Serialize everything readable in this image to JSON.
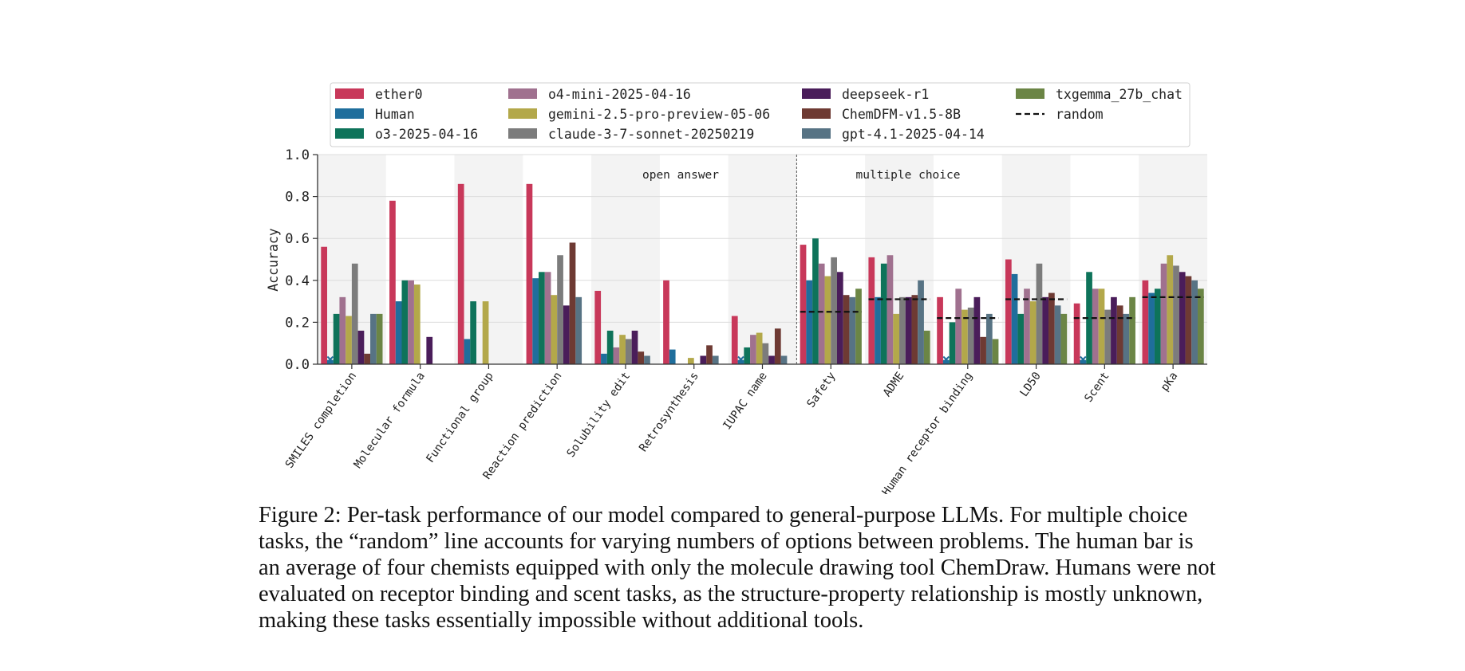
{
  "chart_data": {
    "type": "bar",
    "ylabel": "Accuracy",
    "xlabel": "",
    "ylim": [
      0,
      1.0
    ],
    "yticks": [
      "0.0",
      "0.2",
      "0.4",
      "0.6",
      "0.8",
      "1.0"
    ],
    "grid": true,
    "legend_position": "top-center",
    "section_labels": [
      "open answer",
      "multiple choice"
    ],
    "random_label": "random",
    "categories": [
      "SMILES completion",
      "Molecular formula",
      "Functional group",
      "Reaction prediction",
      "Solubility edit",
      "Retrosynthesis",
      "IUPAC name",
      "Safety",
      "ADME",
      "Human receptor binding",
      "LD50",
      "Scent",
      "pKa"
    ],
    "open_answer_count": 7,
    "series": [
      {
        "name": "ether0",
        "color": "#c8385a",
        "values": [
          0.56,
          0.78,
          0.86,
          0.86,
          0.35,
          0.4,
          0.23,
          0.57,
          0.51,
          0.32,
          0.5,
          0.29,
          0.4
        ]
      },
      {
        "name": "Human",
        "color": "#1f6e9c",
        "values": [
          0.02,
          0.3,
          0.12,
          0.41,
          0.05,
          0.07,
          0.02,
          0.4,
          0.32,
          0.02,
          0.43,
          0.02,
          0.34
        ]
      },
      {
        "name": "o3-2025-04-16",
        "color": "#0e735a",
        "values": [
          0.24,
          0.4,
          0.3,
          0.44,
          0.16,
          0.0,
          0.08,
          0.6,
          0.48,
          0.2,
          0.24,
          0.44,
          0.36
        ]
      },
      {
        "name": "o4-mini-2025-04-16",
        "color": "#a0718f",
        "values": [
          0.32,
          0.4,
          0.0,
          0.44,
          0.08,
          0.0,
          0.14,
          0.48,
          0.52,
          0.36,
          0.36,
          0.36,
          0.48
        ]
      },
      {
        "name": "gemini-2.5-pro-preview-05-06",
        "color": "#b3a84a",
        "values": [
          0.23,
          0.38,
          0.3,
          0.33,
          0.14,
          0.03,
          0.15,
          0.42,
          0.24,
          0.26,
          0.3,
          0.36,
          0.52
        ]
      },
      {
        "name": "claude-3-7-sonnet-20250219",
        "color": "#7c7c7c",
        "values": [
          0.48,
          0.0,
          0.0,
          0.52,
          0.12,
          0.0,
          0.1,
          0.51,
          0.32,
          0.27,
          0.48,
          0.26,
          0.47
        ]
      },
      {
        "name": "deepseek-r1",
        "color": "#4a1d5a",
        "values": [
          0.16,
          0.13,
          0.0,
          0.28,
          0.16,
          0.04,
          0.04,
          0.44,
          0.32,
          0.32,
          0.32,
          0.32,
          0.44
        ]
      },
      {
        "name": "ChemDFM-v1.5-8B",
        "color": "#6e3a33",
        "values": [
          0.05,
          0.0,
          0.0,
          0.58,
          0.06,
          0.09,
          0.17,
          0.33,
          0.33,
          0.13,
          0.34,
          0.28,
          0.42
        ]
      },
      {
        "name": "gpt-4.1-2025-04-14",
        "color": "#577384",
        "values": [
          0.24,
          0.0,
          0.0,
          0.32,
          0.04,
          0.04,
          0.04,
          0.32,
          0.4,
          0.24,
          0.28,
          0.24,
          0.4
        ]
      },
      {
        "name": "txgemma_27b_chat",
        "color": "#6b8545",
        "values": [
          0.24,
          0.0,
          0.0,
          0.0,
          0.0,
          0.0,
          0.0,
          0.36,
          0.16,
          0.12,
          0.24,
          0.32,
          0.36
        ]
      }
    ],
    "human_not_evaluated_marker": [
      true,
      false,
      false,
      false,
      false,
      false,
      true,
      false,
      false,
      true,
      false,
      true,
      false
    ],
    "random_baseline": [
      null,
      null,
      null,
      null,
      null,
      null,
      null,
      0.25,
      0.31,
      0.22,
      0.31,
      0.22,
      0.32
    ]
  },
  "caption": "Figure 2: Per-task performance of our model compared to general-purpose LLMs. For multiple choice tasks, the “random” line accounts for varying numbers of options between problems. The human bar is an average of four chemists equipped with only the molecule drawing tool ChemDraw. Humans were not evaluated on receptor binding and scent tasks, as the structure-property relationship is mostly unknown, making these tasks essentially impossible without additional tools."
}
